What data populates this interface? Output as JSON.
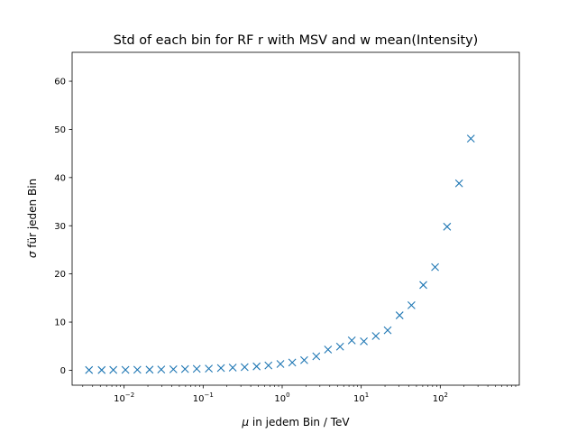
{
  "chart_data": {
    "type": "scatter",
    "title": "Std of each bin for RF r with MSV and w mean(Intensity)",
    "xlabel_symbol": "μ",
    "xlabel_rest": " in jedem Bin / TeV",
    "ylabel_symbol": "σ",
    "ylabel_rest": " für jeden Bin",
    "xscale": "log",
    "xlim": [
      0.0022,
      1000
    ],
    "ylim": [
      -3.1,
      66
    ],
    "grid": false,
    "marker": "x",
    "marker_color": "#1f77b4",
    "x_ticks": [
      {
        "value": 0.01,
        "base": "10",
        "exp": "−2"
      },
      {
        "value": 0.1,
        "base": "10",
        "exp": "−1"
      },
      {
        "value": 1,
        "base": "10",
        "exp": "0"
      },
      {
        "value": 10,
        "base": "10",
        "exp": "1"
      },
      {
        "value": 100,
        "base": "10",
        "exp": "2"
      }
    ],
    "y_ticks": [
      0,
      10,
      20,
      30,
      40,
      50,
      60
    ],
    "x": [
      0.0036,
      0.0052,
      0.0073,
      0.0104,
      0.0147,
      0.021,
      0.0295,
      0.042,
      0.059,
      0.083,
      0.118,
      0.168,
      0.237,
      0.335,
      0.475,
      0.67,
      0.95,
      1.34,
      1.9,
      2.7,
      3.8,
      5.4,
      7.6,
      10.8,
      15.3,
      21.6,
      30.6,
      43.2,
      61,
      86,
      122,
      173,
      244
    ],
    "y": [
      0.05,
      0.05,
      0.07,
      0.08,
      0.1,
      0.12,
      0.15,
      0.2,
      0.25,
      0.3,
      0.35,
      0.45,
      0.55,
      0.65,
      0.8,
      1.0,
      1.3,
      1.6,
      2.1,
      2.9,
      4.3,
      4.9,
      6.2,
      6.0,
      7.1,
      8.3,
      11.4,
      13.5,
      17.7,
      21.4,
      29.8,
      38.8,
      48.1
    ]
  }
}
